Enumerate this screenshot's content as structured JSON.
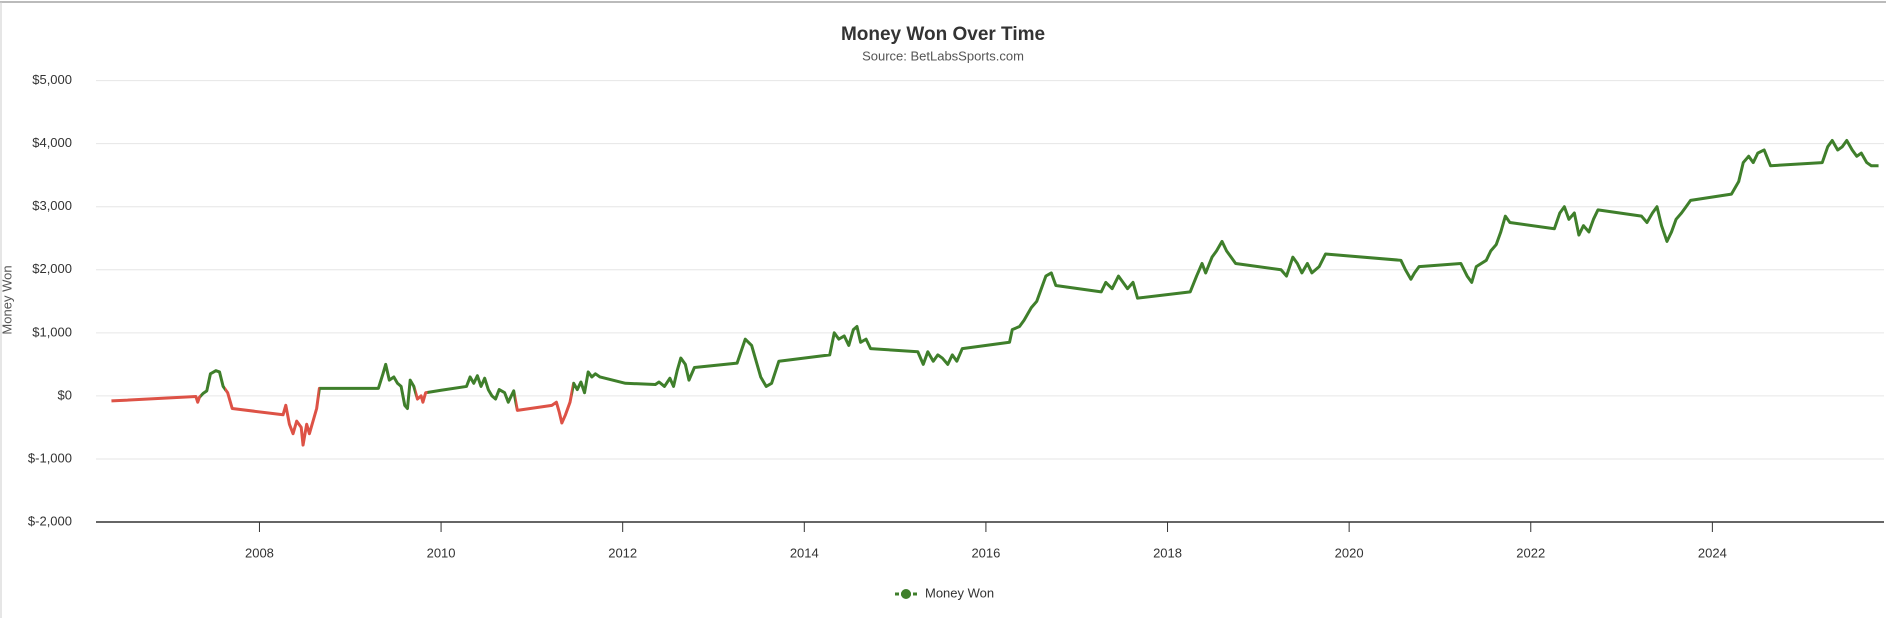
{
  "chart_data": {
    "type": "line",
    "title": "Money Won Over Time",
    "subtitle": "Source: BetLabsSports.com",
    "y_label": "Money Won",
    "xlim": [
      2006.2,
      2025.89
    ],
    "xticks": [
      2008,
      2010,
      2012,
      2014,
      2016,
      2018,
      2020,
      2022,
      2024
    ],
    "ylim": [
      -2000,
      5000
    ],
    "yticks": [
      {
        "value": -2000,
        "label": "$-2,000"
      },
      {
        "value": -1000,
        "label": "$-1,000"
      },
      {
        "value": 0,
        "label": "$0"
      },
      {
        "value": 1000,
        "label": "$1,000"
      },
      {
        "value": 2000,
        "label": "$2,000"
      },
      {
        "value": 3000,
        "label": "$3,000"
      },
      {
        "value": 4000,
        "label": "$4,000"
      },
      {
        "value": 5000,
        "label": "$5,000"
      }
    ],
    "grid": true,
    "legend": "bottom",
    "zones": [
      {
        "value": 2007.35,
        "color": "#dd5246"
      },
      {
        "value": 2007.62,
        "color": "#3f7f2b"
      },
      {
        "value": 2008.66,
        "color": "#dd5246"
      },
      {
        "value": 2009.72,
        "color": "#3f7f2b"
      },
      {
        "value": 2009.85,
        "color": "#dd5246"
      },
      {
        "value": 2010.82,
        "color": "#3f7f2b"
      },
      {
        "value": 2011.45,
        "color": "#dd5246"
      },
      {
        "color": "#3f7f2b"
      }
    ],
    "series": [
      {
        "name": "Money Won",
        "color": "#3f7f2b",
        "x": [
          2006.37,
          2007.3,
          2007.32,
          2007.34,
          2007.38,
          2007.42,
          2007.46,
          2007.52,
          2007.56,
          2007.6,
          2007.65,
          2007.7,
          2008.26,
          2008.29,
          2008.33,
          2008.37,
          2008.41,
          2008.46,
          2008.48,
          2008.52,
          2008.55,
          2008.59,
          2008.63,
          2008.66,
          2009.31,
          2009.36,
          2009.39,
          2009.43,
          2009.48,
          2009.52,
          2009.56,
          2009.6,
          2009.63,
          2009.66,
          2009.7,
          2009.74,
          2009.78,
          2009.8,
          2009.83,
          2010.0,
          2010.28,
          2010.32,
          2010.36,
          2010.4,
          2010.44,
          2010.48,
          2010.52,
          2010.56,
          2010.6,
          2010.64,
          2010.7,
          2010.74,
          2010.8,
          2010.84,
          2011.22,
          2011.27,
          2011.3,
          2011.33,
          2011.37,
          2011.42,
          2011.46,
          2011.5,
          2011.54,
          2011.58,
          2011.62,
          2011.66,
          2011.7,
          2011.75,
          2012.03,
          2012.36,
          2012.4,
          2012.46,
          2012.52,
          2012.56,
          2012.6,
          2012.64,
          2012.69,
          2012.73,
          2012.79,
          2013.26,
          2013.35,
          2013.42,
          2013.48,
          2013.52,
          2013.58,
          2013.64,
          2013.72,
          2014.28,
          2014.33,
          2014.38,
          2014.44,
          2014.49,
          2014.54,
          2014.58,
          2014.62,
          2014.68,
          2014.73,
          2015.25,
          2015.31,
          2015.36,
          2015.42,
          2015.47,
          2015.52,
          2015.58,
          2015.63,
          2015.68,
          2015.74,
          2016.26,
          2016.29,
          2016.37,
          2016.42,
          2016.5,
          2016.56,
          2016.61,
          2016.66,
          2016.72,
          2016.77,
          2017.27,
          2017.32,
          2017.39,
          2017.46,
          2017.51,
          2017.56,
          2017.62,
          2017.67,
          2018.25,
          2018.32,
          2018.38,
          2018.42,
          2018.49,
          2018.54,
          2018.6,
          2018.65,
          2018.7,
          2018.75,
          2019.25,
          2019.31,
          2019.38,
          2019.43,
          2019.48,
          2019.54,
          2019.59,
          2019.67,
          2019.74,
          2020.57,
          2020.62,
          2020.68,
          2020.72,
          2020.77,
          2021.23,
          2021.3,
          2021.35,
          2021.4,
          2021.51,
          2021.56,
          2021.62,
          2021.67,
          2021.72,
          2021.77,
          2022.26,
          2022.32,
          2022.37,
          2022.42,
          2022.48,
          2022.53,
          2022.58,
          2022.64,
          2022.69,
          2022.74,
          2023.22,
          2023.28,
          2023.34,
          2023.39,
          2023.44,
          2023.5,
          2023.55,
          2023.6,
          2023.66,
          2023.71,
          2023.76,
          2024.21,
          2024.29,
          2024.34,
          2024.4,
          2024.45,
          2024.5,
          2024.57,
          2024.64,
          2025.21,
          2025.27,
          2025.32,
          2025.38,
          2025.43,
          2025.48,
          2025.54,
          2025.59,
          2025.64,
          2025.7,
          2025.75,
          2025.83
        ],
        "values": [
          -80,
          -10,
          -100,
          -20,
          40,
          80,
          350,
          400,
          380,
          150,
          50,
          -200,
          -300,
          -150,
          -450,
          -600,
          -400,
          -500,
          -780,
          -450,
          -600,
          -400,
          -200,
          120,
          120,
          350,
          500,
          250,
          300,
          200,
          150,
          -150,
          -200,
          250,
          150,
          -50,
          0,
          -100,
          50,
          90,
          150,
          300,
          200,
          320,
          150,
          280,
          100,
          0,
          -50,
          100,
          50,
          -100,
          80,
          -230,
          -150,
          -100,
          -250,
          -430,
          -300,
          -100,
          200,
          100,
          220,
          50,
          380,
          300,
          350,
          300,
          200,
          180,
          220,
          150,
          280,
          150,
          400,
          600,
          500,
          250,
          450,
          520,
          900,
          800,
          500,
          300,
          150,
          200,
          550,
          650,
          1000,
          900,
          950,
          800,
          1050,
          1100,
          850,
          900,
          750,
          700,
          500,
          700,
          550,
          650,
          600,
          500,
          650,
          550,
          750,
          850,
          1050,
          1100,
          1200,
          1400,
          1500,
          1700,
          1900,
          1950,
          1750,
          1650,
          1800,
          1700,
          1900,
          1800,
          1700,
          1800,
          1550,
          1650,
          1900,
          2100,
          1950,
          2200,
          2300,
          2450,
          2300,
          2200,
          2100,
          2000,
          1900,
          2200,
          2100,
          1950,
          2100,
          1950,
          2050,
          2250,
          2150,
          2000,
          1850,
          1950,
          2050,
          2100,
          1900,
          1800,
          2050,
          2150,
          2300,
          2400,
          2600,
          2850,
          2750,
          2650,
          2900,
          3000,
          2800,
          2900,
          2550,
          2700,
          2600,
          2800,
          2950,
          2850,
          2750,
          2900,
          3000,
          2700,
          2450,
          2600,
          2800,
          2900,
          3000,
          3100,
          3200,
          3400,
          3700,
          3800,
          3700,
          3850,
          3900,
          3650,
          3700,
          3950,
          4050,
          3900,
          3950,
          4050,
          3900,
          3800,
          3850,
          3700,
          3650,
          3650
        ]
      }
    ]
  }
}
